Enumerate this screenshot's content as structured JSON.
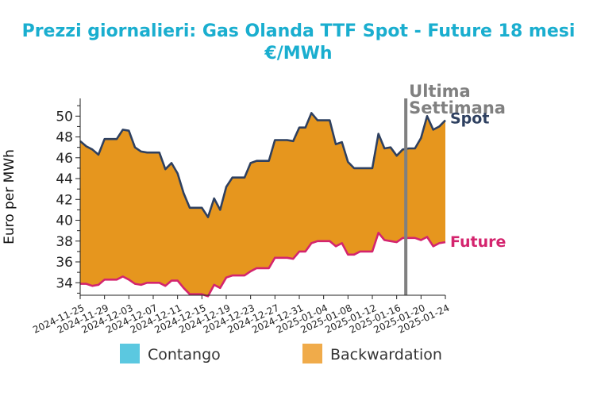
{
  "chart_data": {
    "type": "area",
    "title": "Prezzi giornalieri: Gas Olanda TTF Spot - Future 18 mesi",
    "subtitle": "€/MWh",
    "ylabel": "Euro per MWh",
    "ylim": [
      32.8,
      51.7
    ],
    "yticks": [
      34,
      36,
      38,
      40,
      42,
      44,
      46,
      48,
      50
    ],
    "x": [
      "2024-11-25",
      "2024-11-26",
      "2024-11-27",
      "2024-11-28",
      "2024-11-29",
      "2024-11-30",
      "2024-12-01",
      "2024-12-02",
      "2024-12-03",
      "2024-12-04",
      "2024-12-05",
      "2024-12-06",
      "2024-12-07",
      "2024-12-08",
      "2024-12-09",
      "2024-12-10",
      "2024-12-11",
      "2024-12-12",
      "2024-12-13",
      "2024-12-14",
      "2024-12-15",
      "2024-12-16",
      "2024-12-17",
      "2024-12-18",
      "2024-12-19",
      "2024-12-20",
      "2024-12-21",
      "2024-12-22",
      "2024-12-23",
      "2024-12-24",
      "2024-12-25",
      "2024-12-26",
      "2024-12-27",
      "2024-12-28",
      "2024-12-29",
      "2024-12-30",
      "2024-12-31",
      "2025-01-01",
      "2025-01-02",
      "2025-01-03",
      "2025-01-04",
      "2025-01-05",
      "2025-01-06",
      "2025-01-07",
      "2025-01-08",
      "2025-01-09",
      "2025-01-10",
      "2025-01-11",
      "2025-01-12",
      "2025-01-13",
      "2025-01-14",
      "2025-01-15",
      "2025-01-16",
      "2025-01-17",
      "2025-01-18",
      "2025-01-19",
      "2025-01-20",
      "2025-01-21",
      "2025-01-22",
      "2025-01-23",
      "2025-01-24"
    ],
    "xticks": [
      "2024-11-25",
      "2024-11-29",
      "2024-12-03",
      "2024-12-07",
      "2024-12-11",
      "2024-12-15",
      "2024-12-19",
      "2024-12-23",
      "2024-12-27",
      "2024-12-31",
      "2025-01-04",
      "2025-01-08",
      "2025-01-12",
      "2025-01-16",
      "2025-01-20",
      "2025-01-24"
    ],
    "series": [
      {
        "name": "Spot",
        "color": "#2e4060",
        "values": [
          47.6,
          47.1,
          46.8,
          46.3,
          47.8,
          47.8,
          47.8,
          48.7,
          48.6,
          47.0,
          46.6,
          46.5,
          46.5,
          46.5,
          44.9,
          45.5,
          44.5,
          42.6,
          41.2,
          41.2,
          41.2,
          40.3,
          42.1,
          41.0,
          43.2,
          44.1,
          44.1,
          44.1,
          45.5,
          45.7,
          45.7,
          45.7,
          47.7,
          47.7,
          47.7,
          47.6,
          48.9,
          48.9,
          50.3,
          49.6,
          49.6,
          49.6,
          47.3,
          47.5,
          45.6,
          45.0,
          45.0,
          45.0,
          45.0,
          48.3,
          46.9,
          47.0,
          46.2,
          46.8,
          46.9,
          46.9,
          47.9,
          50.0,
          48.7,
          49.0,
          49.6
        ]
      },
      {
        "name": "Future",
        "color": "#d4246e",
        "values": [
          33.9,
          33.9,
          33.7,
          33.8,
          34.3,
          34.3,
          34.3,
          34.6,
          34.3,
          33.9,
          33.8,
          34.0,
          34.0,
          34.0,
          33.7,
          34.2,
          34.2,
          33.5,
          32.9,
          32.9,
          32.9,
          32.7,
          33.8,
          33.5,
          34.5,
          34.7,
          34.7,
          34.7,
          35.1,
          35.4,
          35.4,
          35.4,
          36.4,
          36.4,
          36.4,
          36.3,
          37.0,
          37.0,
          37.8,
          38.0,
          38.0,
          38.0,
          37.5,
          37.8,
          36.7,
          36.7,
          37.0,
          37.0,
          37.0,
          38.8,
          38.1,
          38.0,
          37.9,
          38.3,
          38.3,
          38.3,
          38.1,
          38.4,
          37.5,
          37.8,
          37.9
        ]
      }
    ],
    "marker": {
      "label_line1": "Ultima",
      "label_line2": "Settimana",
      "x": "2025-01-17"
    },
    "legend": {
      "placement": "bottom",
      "items": [
        {
          "label": "Contango",
          "color": "#5bc8e0"
        },
        {
          "label": "Backwardation",
          "color": "#f0ab4a"
        }
      ]
    },
    "fill_color": "#e6961e"
  }
}
